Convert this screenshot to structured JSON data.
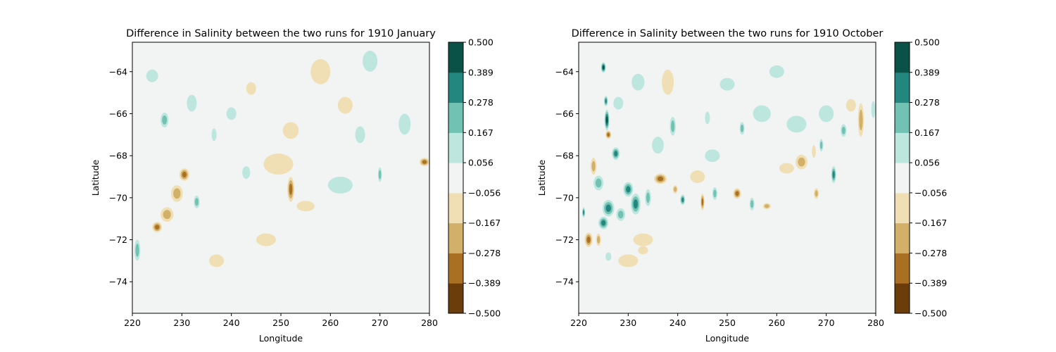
{
  "colorbar": {
    "levels": [
      -0.5,
      -0.389,
      -0.278,
      -0.167,
      -0.056,
      0.056,
      0.167,
      0.278,
      0.389,
      0.5
    ],
    "tick_labels": [
      "−0.500",
      "−0.389",
      "−0.278",
      "−0.167",
      "−0.056",
      "0.056",
      "0.167",
      "0.278",
      "0.389",
      "0.500"
    ],
    "colors": [
      "#6b3d0a",
      "#a96f23",
      "#d3b06a",
      "#f0dfb4",
      "#f2f4f3",
      "#bde6df",
      "#72c2b4",
      "#238780",
      "#0a5147"
    ]
  },
  "chart_data": [
    {
      "type": "heatmap",
      "title": "Difference in Salinity between the two runs for 1910 January",
      "xlabel": "Longitude",
      "ylabel": "Latitude",
      "xlim": [
        220,
        280
      ],
      "ylim": [
        -75.5,
        -62.6
      ],
      "xticks": [
        220,
        230,
        240,
        250,
        260,
        270,
        280
      ],
      "xtick_labels": [
        "220",
        "230",
        "240",
        "250",
        "260",
        "270",
        "280"
      ],
      "yticks": [
        -74,
        -72,
        -70,
        -68,
        -66,
        -64
      ],
      "ytick_labels": [
        "−74",
        "−72",
        "−70",
        "−68",
        "−66",
        "−64"
      ],
      "features": [
        {
          "lon": 226.5,
          "lat": -66.3,
          "value": 0.22,
          "rx": 0.8,
          "ry": 0.35
        },
        {
          "lon": 230.5,
          "lat": -68.9,
          "value": -0.42,
          "rx": 1.0,
          "ry": 0.3
        },
        {
          "lon": 229.0,
          "lat": -69.8,
          "value": -0.25,
          "rx": 1.2,
          "ry": 0.4
        },
        {
          "lon": 227.0,
          "lat": -70.8,
          "value": -0.3,
          "rx": 1.3,
          "ry": 0.35
        },
        {
          "lon": 225.0,
          "lat": -71.4,
          "value": -0.38,
          "rx": 1.0,
          "ry": 0.25
        },
        {
          "lon": 233.0,
          "lat": -70.2,
          "value": 0.3,
          "rx": 0.6,
          "ry": 0.3
        },
        {
          "lon": 221.0,
          "lat": -72.5,
          "value": 0.25,
          "rx": 0.6,
          "ry": 0.5
        },
        {
          "lon": 236.5,
          "lat": -67.0,
          "value": 0.2,
          "rx": 0.5,
          "ry": 0.3
        },
        {
          "lon": 252.0,
          "lat": -69.6,
          "value": -0.35,
          "rx": 0.7,
          "ry": 0.6
        },
        {
          "lon": 249.5,
          "lat": -68.4,
          "value": -0.12,
          "rx": 3.0,
          "ry": 0.5
        },
        {
          "lon": 255.0,
          "lat": -70.4,
          "value": -0.15,
          "rx": 1.8,
          "ry": 0.25
        },
        {
          "lon": 262.0,
          "lat": -69.4,
          "value": 0.12,
          "rx": 2.5,
          "ry": 0.4
        },
        {
          "lon": 270.0,
          "lat": -68.9,
          "value": 0.3,
          "rx": 0.4,
          "ry": 0.35
        },
        {
          "lon": 279.0,
          "lat": -68.3,
          "value": -0.35,
          "rx": 1.0,
          "ry": 0.2
        },
        {
          "lon": 263.0,
          "lat": -65.6,
          "value": -0.12,
          "rx": 1.5,
          "ry": 0.4
        },
        {
          "lon": 252.0,
          "lat": -66.8,
          "value": -0.1,
          "rx": 1.6,
          "ry": 0.4
        },
        {
          "lon": 244.0,
          "lat": -64.8,
          "value": -0.1,
          "rx": 1.0,
          "ry": 0.3
        },
        {
          "lon": 258.0,
          "lat": -64.0,
          "value": -0.1,
          "rx": 2.0,
          "ry": 0.6
        },
        {
          "lon": 247.0,
          "lat": -72.0,
          "value": -0.1,
          "rx": 2.0,
          "ry": 0.3
        },
        {
          "lon": 237.0,
          "lat": -73.0,
          "value": -0.1,
          "rx": 1.5,
          "ry": 0.3
        },
        {
          "lon": 243.0,
          "lat": -68.8,
          "value": 0.12,
          "rx": 0.8,
          "ry": 0.3
        },
        {
          "lon": 266.0,
          "lat": -67.0,
          "value": 0.12,
          "rx": 1.0,
          "ry": 0.4
        },
        {
          "lon": 275.0,
          "lat": -66.5,
          "value": 0.12,
          "rx": 1.2,
          "ry": 0.5
        },
        {
          "lon": 232.0,
          "lat": -65.5,
          "value": 0.12,
          "rx": 1.0,
          "ry": 0.4
        },
        {
          "lon": 224.0,
          "lat": -64.2,
          "value": 0.1,
          "rx": 1.2,
          "ry": 0.3
        },
        {
          "lon": 268.0,
          "lat": -63.5,
          "value": 0.1,
          "rx": 1.5,
          "ry": 0.5
        },
        {
          "lon": 240.0,
          "lat": -66.0,
          "value": 0.1,
          "rx": 1.0,
          "ry": 0.3
        }
      ]
    },
    {
      "type": "heatmap",
      "title": "Difference in Salinity between the two runs for 1910 October",
      "xlabel": "Longitude",
      "ylabel": "Latitude",
      "xlim": [
        220,
        280
      ],
      "ylim": [
        -75.5,
        -62.6
      ],
      "xticks": [
        220,
        230,
        240,
        250,
        260,
        270,
        280
      ],
      "xtick_labels": [
        "220",
        "230",
        "240",
        "250",
        "260",
        "270",
        "280"
      ],
      "yticks": [
        -74,
        -72,
        -70,
        -68,
        -66,
        -64
      ],
      "ytick_labels": [
        "−74",
        "−72",
        "−70",
        "−68",
        "−66",
        "−64"
      ],
      "features": [
        {
          "lon": 225.0,
          "lat": -63.8,
          "value": 0.45,
          "rx": 0.5,
          "ry": 0.25
        },
        {
          "lon": 225.7,
          "lat": -66.3,
          "value": 0.45,
          "rx": 0.5,
          "ry": 0.5
        },
        {
          "lon": 225.5,
          "lat": -65.4,
          "value": 0.4,
          "rx": 0.4,
          "ry": 0.25
        },
        {
          "lon": 226.0,
          "lat": -67.0,
          "value": -0.35,
          "rx": 0.6,
          "ry": 0.2
        },
        {
          "lon": 227.5,
          "lat": -67.9,
          "value": 0.38,
          "rx": 0.8,
          "ry": 0.3
        },
        {
          "lon": 223.0,
          "lat": -68.5,
          "value": -0.3,
          "rx": 0.6,
          "ry": 0.4
        },
        {
          "lon": 224.0,
          "lat": -69.3,
          "value": 0.3,
          "rx": 1.0,
          "ry": 0.35
        },
        {
          "lon": 226.0,
          "lat": -70.5,
          "value": 0.42,
          "rx": 1.2,
          "ry": 0.4
        },
        {
          "lon": 230.0,
          "lat": -69.6,
          "value": 0.42,
          "rx": 1.0,
          "ry": 0.35
        },
        {
          "lon": 231.5,
          "lat": -70.3,
          "value": 0.35,
          "rx": 1.0,
          "ry": 0.5
        },
        {
          "lon": 228.5,
          "lat": -70.8,
          "value": 0.3,
          "rx": 0.9,
          "ry": 0.3
        },
        {
          "lon": 225.0,
          "lat": -71.2,
          "value": 0.4,
          "rx": 1.0,
          "ry": 0.3
        },
        {
          "lon": 222.0,
          "lat": -72.0,
          "value": -0.4,
          "rx": 0.8,
          "ry": 0.35
        },
        {
          "lon": 224.0,
          "lat": -72.0,
          "value": -0.32,
          "rx": 0.5,
          "ry": 0.3
        },
        {
          "lon": 221.0,
          "lat": -70.7,
          "value": 0.35,
          "rx": 0.3,
          "ry": 0.25
        },
        {
          "lon": 234.0,
          "lat": -70.0,
          "value": 0.25,
          "rx": 0.6,
          "ry": 0.4
        },
        {
          "lon": 236.5,
          "lat": -69.1,
          "value": -0.35,
          "rx": 1.3,
          "ry": 0.25
        },
        {
          "lon": 239.5,
          "lat": -69.6,
          "value": -0.3,
          "rx": 0.5,
          "ry": 0.2
        },
        {
          "lon": 241.0,
          "lat": -70.1,
          "value": 0.4,
          "rx": 0.5,
          "ry": 0.25
        },
        {
          "lon": 245.0,
          "lat": -70.2,
          "value": -0.4,
          "rx": 0.4,
          "ry": 0.4
        },
        {
          "lon": 247.5,
          "lat": -69.8,
          "value": 0.3,
          "rx": 0.5,
          "ry": 0.3
        },
        {
          "lon": 252.0,
          "lat": -69.8,
          "value": -0.35,
          "rx": 0.8,
          "ry": 0.25
        },
        {
          "lon": 255.0,
          "lat": -70.3,
          "value": 0.32,
          "rx": 0.5,
          "ry": 0.3
        },
        {
          "lon": 258.0,
          "lat": -70.4,
          "value": -0.32,
          "rx": 0.8,
          "ry": 0.15
        },
        {
          "lon": 265.0,
          "lat": -68.3,
          "value": -0.28,
          "rx": 1.2,
          "ry": 0.35
        },
        {
          "lon": 262.0,
          "lat": -68.6,
          "value": -0.18,
          "rx": 1.5,
          "ry": 0.25
        },
        {
          "lon": 267.5,
          "lat": -67.8,
          "value": -0.2,
          "rx": 0.4,
          "ry": 0.3
        },
        {
          "lon": 269.0,
          "lat": -67.5,
          "value": 0.32,
          "rx": 0.4,
          "ry": 0.3
        },
        {
          "lon": 271.5,
          "lat": -68.9,
          "value": 0.35,
          "rx": 0.5,
          "ry": 0.4
        },
        {
          "lon": 268.0,
          "lat": -69.8,
          "value": -0.3,
          "rx": 0.5,
          "ry": 0.25
        },
        {
          "lon": 277.0,
          "lat": -66.3,
          "value": -0.32,
          "rx": 0.6,
          "ry": 0.8
        },
        {
          "lon": 273.5,
          "lat": -66.8,
          "value": 0.3,
          "rx": 0.6,
          "ry": 0.3
        },
        {
          "lon": 275.0,
          "lat": -65.6,
          "value": -0.12,
          "rx": 1.0,
          "ry": 0.3
        },
        {
          "lon": 279.5,
          "lat": -65.8,
          "value": 0.2,
          "rx": 0.4,
          "ry": 0.4
        },
        {
          "lon": 239.0,
          "lat": -66.6,
          "value": 0.28,
          "rx": 0.6,
          "ry": 0.45
        },
        {
          "lon": 238.0,
          "lat": -64.5,
          "value": -0.12,
          "rx": 1.2,
          "ry": 0.6
        },
        {
          "lon": 253.0,
          "lat": -66.7,
          "value": 0.25,
          "rx": 0.5,
          "ry": 0.3
        },
        {
          "lon": 246.0,
          "lat": -66.2,
          "value": 0.15,
          "rx": 0.5,
          "ry": 0.3
        },
        {
          "lon": 233.0,
          "lat": -72.0,
          "value": -0.12,
          "rx": 2.0,
          "ry": 0.3
        },
        {
          "lon": 233.0,
          "lat": -72.5,
          "value": -0.1,
          "rx": 1.0,
          "ry": 0.2
        },
        {
          "lon": 230.0,
          "lat": -73.0,
          "value": -0.1,
          "rx": 2.0,
          "ry": 0.3
        },
        {
          "lon": 236.0,
          "lat": -67.5,
          "value": 0.1,
          "rx": 1.2,
          "ry": 0.4
        },
        {
          "lon": 247.0,
          "lat": -68.0,
          "value": 0.12,
          "rx": 1.5,
          "ry": 0.3
        },
        {
          "lon": 257.0,
          "lat": -66.0,
          "value": 0.12,
          "rx": 1.8,
          "ry": 0.4
        },
        {
          "lon": 264.0,
          "lat": -66.5,
          "value": 0.12,
          "rx": 2.0,
          "ry": 0.4
        },
        {
          "lon": 270.0,
          "lat": -66.0,
          "value": 0.12,
          "rx": 1.5,
          "ry": 0.4
        },
        {
          "lon": 232.0,
          "lat": -64.5,
          "value": 0.12,
          "rx": 1.3,
          "ry": 0.4
        },
        {
          "lon": 228.0,
          "lat": -65.5,
          "value": 0.1,
          "rx": 1.0,
          "ry": 0.3
        },
        {
          "lon": 260.0,
          "lat": -64.0,
          "value": 0.1,
          "rx": 1.5,
          "ry": 0.3
        },
        {
          "lon": 250.0,
          "lat": -64.6,
          "value": 0.1,
          "rx": 1.5,
          "ry": 0.3
        },
        {
          "lon": 244.0,
          "lat": -69.0,
          "value": -0.12,
          "rx": 1.5,
          "ry": 0.3
        },
        {
          "lon": 226.0,
          "lat": -72.8,
          "value": 0.2,
          "rx": 0.6,
          "ry": 0.2
        }
      ]
    }
  ]
}
